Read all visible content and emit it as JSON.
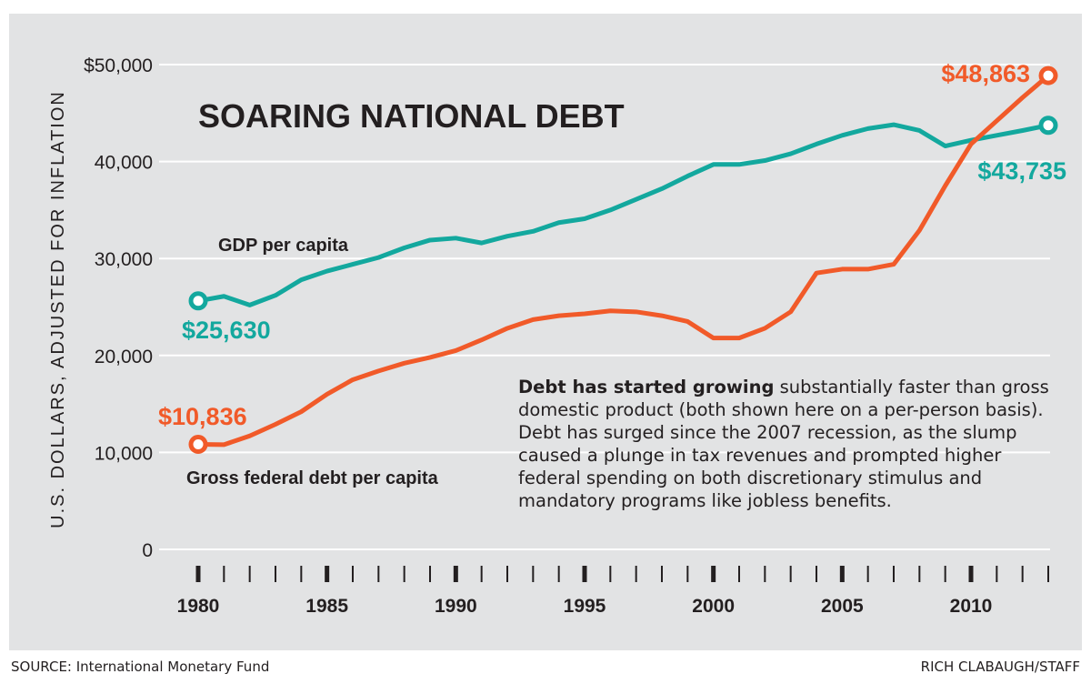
{
  "chart_data": {
    "type": "line",
    "title": "SOARING NATIONAL DEBT",
    "ylabel": "U.S. DOLLARS, ADJUSTED FOR INFLATION",
    "xlabel": "",
    "ylim": [
      0,
      50000
    ],
    "xlim": [
      1980,
      2013
    ],
    "grid": true,
    "y_ticks": [
      0,
      10000,
      20000,
      30000,
      40000,
      50000
    ],
    "y_tick_labels": [
      "0",
      "10,000",
      "20,000",
      "30,000",
      "40,000",
      "$50,000"
    ],
    "x_tick_labels": [
      "1980",
      "1985",
      "1990",
      "1995",
      "2000",
      "2005",
      "2010"
    ],
    "x": [
      1980,
      1981,
      1982,
      1983,
      1984,
      1985,
      1986,
      1987,
      1988,
      1989,
      1990,
      1991,
      1992,
      1993,
      1994,
      1995,
      1996,
      1997,
      1998,
      1999,
      2000,
      2001,
      2002,
      2003,
      2004,
      2005,
      2006,
      2007,
      2008,
      2009,
      2010,
      2011,
      2012,
      2013
    ],
    "series": [
      {
        "name": "GDP per capita",
        "color": "#13a89e",
        "start_label": "$25,630",
        "end_label": "$43,735",
        "values": [
          25630,
          26100,
          25200,
          26200,
          27800,
          28700,
          29400,
          30100,
          31100,
          31900,
          32100,
          31600,
          32300,
          32800,
          33700,
          34100,
          35000,
          36100,
          37200,
          38500,
          39700,
          39700,
          40100,
          40800,
          41800,
          42700,
          43400,
          43800,
          43200,
          41600,
          42200,
          42700,
          43200,
          43735
        ]
      },
      {
        "name": "Gross federal debt per capita",
        "color": "#f15a29",
        "start_label": "$10,836",
        "end_label": "$48,863",
        "values": [
          10836,
          10800,
          11700,
          12900,
          14200,
          16000,
          17500,
          18400,
          19200,
          19800,
          20500,
          21600,
          22800,
          23700,
          24100,
          24300,
          24600,
          24500,
          24100,
          23500,
          21800,
          21800,
          22800,
          24500,
          28500,
          28900,
          28900,
          29400,
          32900,
          37500,
          41800,
          44200,
          46600,
          48863
        ]
      }
    ]
  },
  "note": {
    "bold": "Debt has started growing",
    "text": " substantially faster than gross domestic product (both shown here on a per-person basis). Debt has surged since the 2007 recession, as the slump caused a plunge in tax revenues and prompted higher federal spending on both discretionary stimulus and mandatory programs like jobless benefits."
  },
  "footer": {
    "source": "SOURCE: International Monetary Fund",
    "credit": "RICH CLABAUGH/STAFF"
  }
}
